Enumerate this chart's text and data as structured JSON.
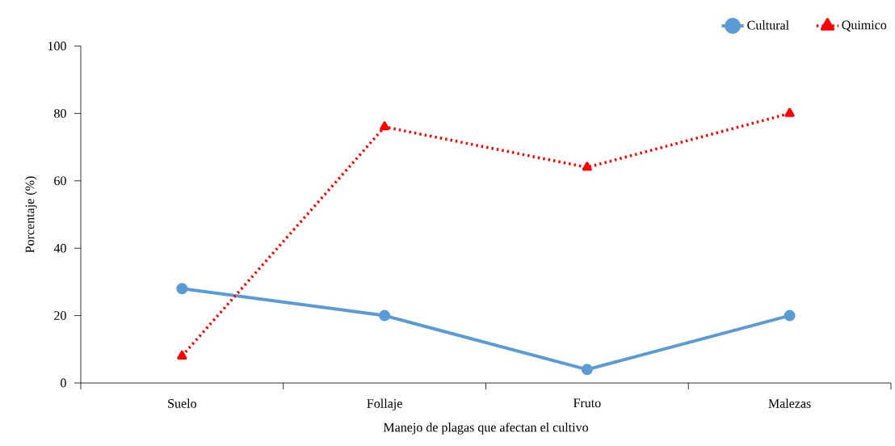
{
  "chart_data": {
    "type": "line",
    "xlabel": "Manejo de plagas que afectan el cultivo",
    "ylabel": "Porcentaje (%)",
    "categories": [
      "Suelo",
      "Follaje",
      "Fruto",
      "Malezas"
    ],
    "series": [
      {
        "name": "Cultural",
        "color": "#5b9bd5",
        "values": [
          28,
          20,
          4,
          20
        ],
        "marker": "circle",
        "line_style": "solid"
      },
      {
        "name": "Quimico",
        "color": "#ff0000",
        "values": [
          8,
          76,
          64,
          80
        ],
        "marker": "triangle",
        "line_style": "dotted"
      }
    ],
    "ylim": [
      0,
      100
    ],
    "yticks": [
      0,
      20,
      40,
      60,
      80,
      100
    ],
    "grid": false,
    "legend": "top right"
  }
}
